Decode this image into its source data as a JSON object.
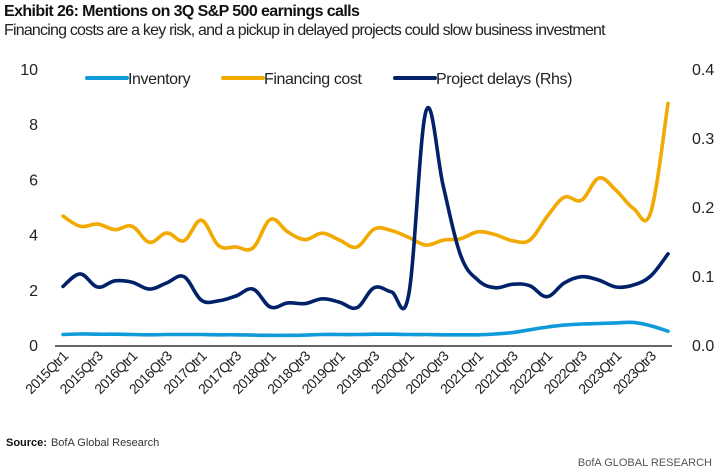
{
  "header": {
    "title": "Exhibit 26: Mentions on 3Q S&P 500 earnings calls",
    "subtitle": "Financing costs are a key risk, and a pickup in delayed projects could slow business investment"
  },
  "footer": {
    "source_label": "Source:",
    "source_text": "BofA Global Research",
    "brand": "BofA GLOBAL RESEARCH"
  },
  "chart_data": {
    "type": "line",
    "title": "Exhibit 26: Mentions on 3Q S&P 500 earnings calls",
    "subtitle": "Financing costs are a key risk, and a pickup in delayed projects could slow business investment",
    "xlabel": "",
    "ylabel": "",
    "ylabel_right": "",
    "ylim": [
      0,
      10
    ],
    "ylim_right": [
      0,
      0.4
    ],
    "yticks": [
      "0",
      "2",
      "4",
      "6",
      "8",
      "10"
    ],
    "yticks_right": [
      "0.0",
      "0.1",
      "0.2",
      "0.3",
      "0.4"
    ],
    "grid": false,
    "legend_position": "top",
    "x": [
      "2015Qtr1",
      "2015Qtr2",
      "2015Qtr3",
      "2015Qtr4",
      "2016Qtr1",
      "2016Qtr2",
      "2016Qtr3",
      "2016Qtr4",
      "2017Qtr1",
      "2017Qtr2",
      "2017Qtr3",
      "2017Qtr4",
      "2018Qtr1",
      "2018Qtr2",
      "2018Qtr3",
      "2018Qtr4",
      "2019Qtr1",
      "2019Qtr2",
      "2019Qtr3",
      "2019Qtr4",
      "2020Qtr1",
      "2020Qtr2",
      "2020Qtr3",
      "2020Qtr4",
      "2021Qtr1",
      "2021Qtr2",
      "2021Qtr3",
      "2021Qtr4",
      "2022Qtr1",
      "2022Qtr2",
      "2022Qtr3",
      "2022Qtr4",
      "2023Qtr1",
      "2023Qtr2",
      "2023Qtr3",
      "2023Qtr4"
    ],
    "xtick_labels": [
      "2015Qtr1",
      "2015Qtr3",
      "2016Qtr1",
      "2016Qtr3",
      "2017Qtr1",
      "2017Qtr3",
      "2018Qtr1",
      "2018Qtr3",
      "2019Qtr1",
      "2019Qtr3",
      "2020Qtr1",
      "2020Qtr3",
      "2021Qtr1",
      "2021Qtr3",
      "2022Qtr1",
      "2022Qtr3",
      "2023Qtr1",
      "2023Qtr3"
    ],
    "series": [
      {
        "name": "Inventory",
        "axis": "left",
        "color": "#0f9ad9",
        "values": [
          0.38,
          0.4,
          0.39,
          0.39,
          0.38,
          0.37,
          0.38,
          0.38,
          0.38,
          0.37,
          0.37,
          0.36,
          0.35,
          0.35,
          0.36,
          0.38,
          0.38,
          0.38,
          0.39,
          0.39,
          0.38,
          0.38,
          0.37,
          0.37,
          0.37,
          0.4,
          0.45,
          0.55,
          0.65,
          0.72,
          0.76,
          0.78,
          0.8,
          0.82,
          0.7,
          0.5
        ]
      },
      {
        "name": "Financing cost",
        "axis": "left",
        "color": "#f2a900",
        "values": [
          4.67,
          4.3,
          4.38,
          4.18,
          4.3,
          3.72,
          4.06,
          3.78,
          4.52,
          3.6,
          3.55,
          3.52,
          4.55,
          4.1,
          3.82,
          4.05,
          3.8,
          3.55,
          4.2,
          4.15,
          3.9,
          3.62,
          3.8,
          3.85,
          4.1,
          4.0,
          3.78,
          3.8,
          4.65,
          5.35,
          5.25,
          6.05,
          5.6,
          4.95,
          4.8,
          8.75
        ]
      },
      {
        "name": "Project delays (Rhs)",
        "axis": "right",
        "color": "#012169",
        "values": [
          0.085,
          0.103,
          0.084,
          0.093,
          0.091,
          0.081,
          0.09,
          0.099,
          0.065,
          0.064,
          0.071,
          0.081,
          0.055,
          0.061,
          0.06,
          0.067,
          0.062,
          0.054,
          0.083,
          0.077,
          0.073,
          0.339,
          0.23,
          0.13,
          0.094,
          0.083,
          0.088,
          0.086,
          0.07,
          0.09,
          0.099,
          0.094,
          0.084,
          0.087,
          0.1,
          0.132
        ]
      }
    ]
  }
}
